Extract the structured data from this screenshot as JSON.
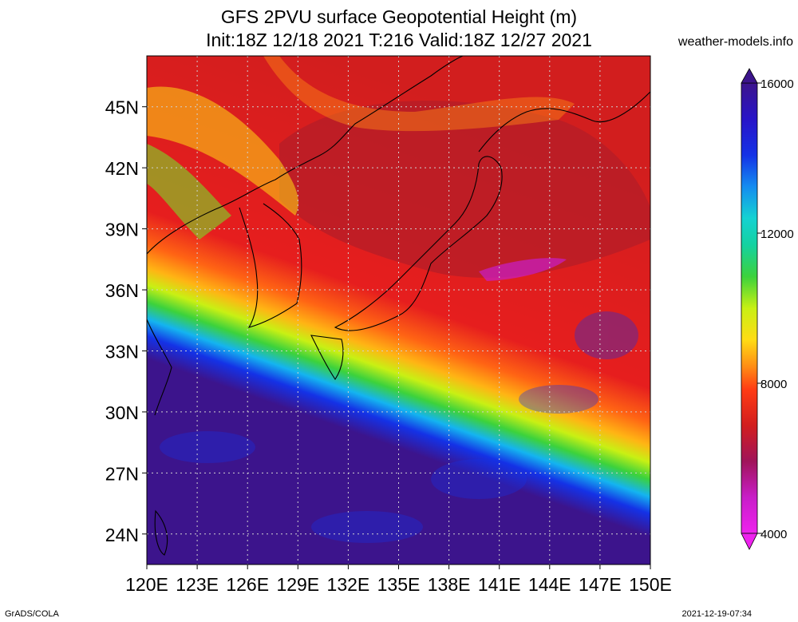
{
  "header": {
    "title_line1": "GFS 2PVU surface Geopotential Height (m)",
    "title_line2": "Init:18Z 12/18 2021 T:216 Valid:18Z 12/27 2021",
    "site": "weather-models.info"
  },
  "footer": {
    "left": "GrADS/COLA",
    "right": "2021-12-19-07:34"
  },
  "map": {
    "lat_labels": [
      "45N",
      "42N",
      "39N",
      "36N",
      "33N",
      "30N",
      "27N",
      "24N"
    ],
    "lon_labels": [
      "120E",
      "123E",
      "126E",
      "129E",
      "132E",
      "135E",
      "138E",
      "141E",
      "144E",
      "147E",
      "150E"
    ],
    "lat_values": [
      45,
      42,
      39,
      36,
      33,
      30,
      27,
      24
    ],
    "lon_values": [
      120,
      123,
      126,
      129,
      132,
      135,
      138,
      141,
      144,
      147,
      150
    ],
    "lon_range": [
      120,
      150
    ],
    "lat_range": [
      22.5,
      47.5
    ]
  },
  "colorbar": {
    "labels": [
      "16000",
      "12000",
      "8000",
      "4000"
    ],
    "values": [
      16000,
      12000,
      8000,
      4000
    ],
    "range": [
      4000,
      16000
    ],
    "colors": [
      "#ee22ee",
      "#c81ec8",
      "#a0145a",
      "#b41e28",
      "#d21e1e",
      "#f01e1e",
      "#ff3c14",
      "#ff6414",
      "#ff8c14",
      "#ffb414",
      "#ffdc14",
      "#f0f014",
      "#c8f014",
      "#a0e614",
      "#78dc28",
      "#3cd23c",
      "#14c864",
      "#14d2a0",
      "#14d2d2",
      "#14b4f0",
      "#148cf0",
      "#1464f0",
      "#1432e6",
      "#1414dc",
      "#2814c8",
      "#3214a0",
      "#3c148c"
    ]
  }
}
